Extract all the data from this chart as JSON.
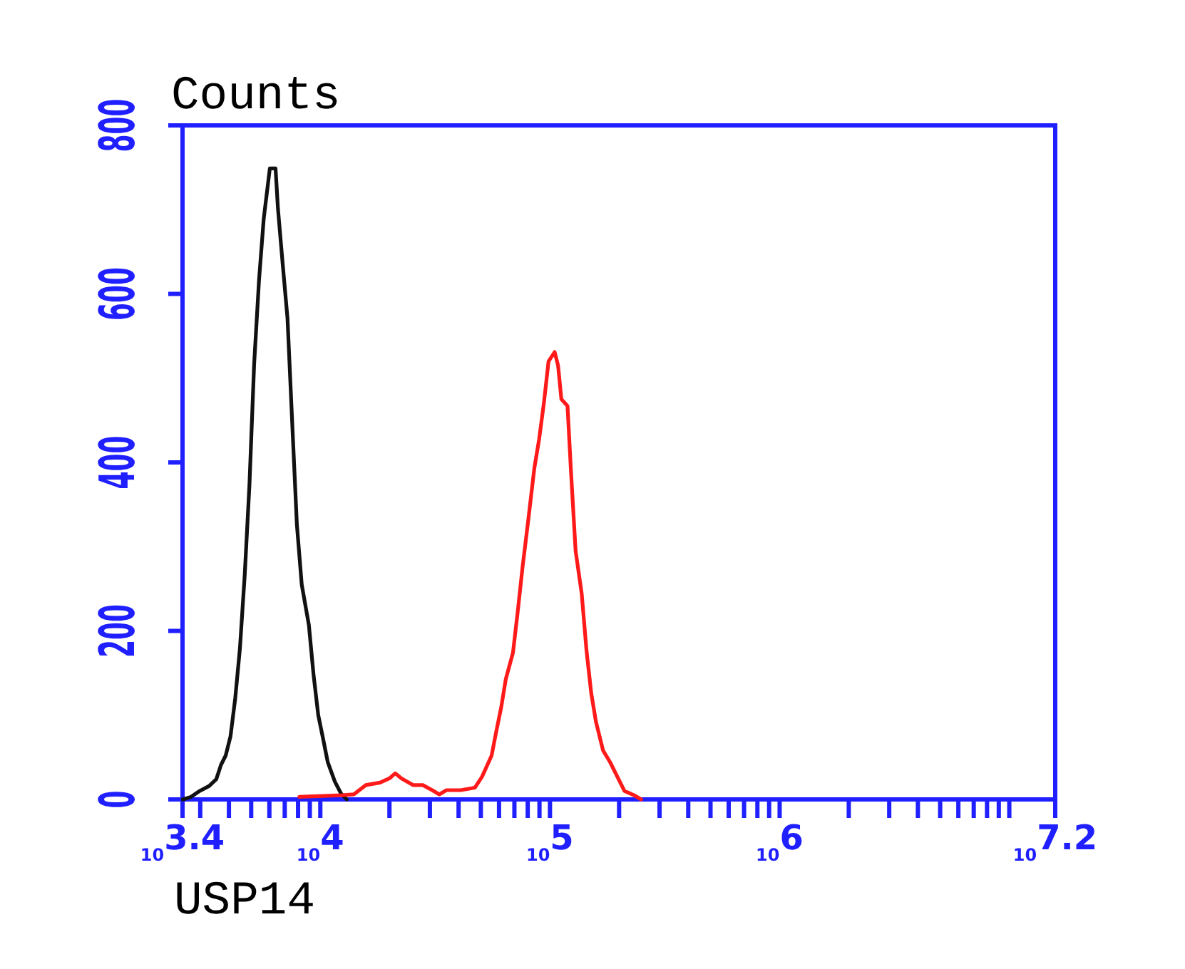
{
  "chart_data": {
    "type": "line",
    "ylabel": "Counts",
    "xlabel": "USP14",
    "log": "x",
    "xlim": [
      2512,
      15850000
    ],
    "xticks": [
      {
        "value": 2512,
        "label": "10$^{3.4}$"
      },
      {
        "value": 3000,
        "label": null
      },
      {
        "value": 4000,
        "label": null
      },
      {
        "value": 5000,
        "label": null
      },
      {
        "value": 6000,
        "label": null
      },
      {
        "value": 7000,
        "label": null
      },
      {
        "value": 8000,
        "label": null
      },
      {
        "value": 9000,
        "label": null
      },
      {
        "value": 10000,
        "label": "10$^{4}$"
      },
      {
        "value": 20000,
        "label": null
      },
      {
        "value": 30000,
        "label": null
      },
      {
        "value": 40000,
        "label": null
      },
      {
        "value": 50000,
        "label": null
      },
      {
        "value": 60000,
        "label": null
      },
      {
        "value": 70000,
        "label": null
      },
      {
        "value": 80000,
        "label": null
      },
      {
        "value": 90000,
        "label": null
      },
      {
        "value": 100000,
        "label": "10$^{5}$"
      },
      {
        "value": 200000,
        "label": null
      },
      {
        "value": 300000,
        "label": null
      },
      {
        "value": 400000,
        "label": null
      },
      {
        "value": 500000,
        "label": null
      },
      {
        "value": 600000,
        "label": null
      },
      {
        "value": 700000,
        "label": null
      },
      {
        "value": 800000,
        "label": null
      },
      {
        "value": 900000,
        "label": null
      },
      {
        "value": 1000000,
        "label": "10$^{6}$"
      },
      {
        "value": 2000000,
        "label": null
      },
      {
        "value": 3000000,
        "label": null
      },
      {
        "value": 4000000,
        "label": null
      },
      {
        "value": 5000000,
        "label": null
      },
      {
        "value": 6000000,
        "label": null
      },
      {
        "value": 7000000,
        "label": null
      },
      {
        "value": 8000000,
        "label": null
      },
      {
        "value": 9000000,
        "label": null
      },
      {
        "value": 10000000,
        "label": null
      },
      {
        "value": 15850000,
        "label": "10$^{7.2}$"
      }
    ],
    "ylim": [
      0,
      800
    ],
    "yticks": [
      0,
      200,
      400,
      600,
      800
    ],
    "series": [
      {
        "color": "#111111",
        "x": [
          2520,
          2736,
          2981,
          3281,
          3524,
          3694,
          3871,
          4064,
          4261,
          4466,
          4688,
          4915,
          5151,
          5408,
          5669,
          6029,
          6383,
          6540,
          6855,
          7196,
          7544,
          7907,
          8300,
          8916,
          9344,
          9795,
          10283,
          10779,
          11574,
          12311,
          13032
        ],
        "values": [
          0,
          3,
          10,
          16,
          24,
          41,
          52,
          75,
          120,
          179,
          267,
          374,
          517,
          616,
          689,
          749,
          749,
          701,
          636,
          571,
          447,
          326,
          255,
          207,
          148,
          100,
          72,
          44,
          21,
          7,
          0
        ]
      },
      {
        "color": "#ff1a1a",
        "x": [
          8101,
          12432,
          13996,
          15784,
          18202,
          20007,
          21182,
          22554,
          25392,
          27939,
          30698,
          32973,
          35410,
          40856,
          47135,
          50610,
          55689,
          58390,
          61290,
          64240,
          68990,
          72310,
          75910,
          80390,
          85480,
          89620,
          94040,
          98580,
          104830,
          108460,
          112100,
          119220,
          123350,
          129300,
          137470,
          144310,
          151250,
          158610,
          170310,
          182930,
          196500,
          211000,
          232200,
          249400
        ],
        "values": [
          3,
          5,
          6,
          17,
          20,
          25,
          31,
          25,
          17,
          17,
          11,
          6,
          11,
          11,
          14,
          27,
          52,
          81,
          109,
          143,
          174,
          222,
          275,
          331,
          393,
          427,
          470,
          520,
          531,
          515,
          475,
          467,
          391,
          295,
          244,
          176,
          126,
          92,
          58,
          44,
          27,
          10,
          5,
          0
        ]
      }
    ]
  }
}
